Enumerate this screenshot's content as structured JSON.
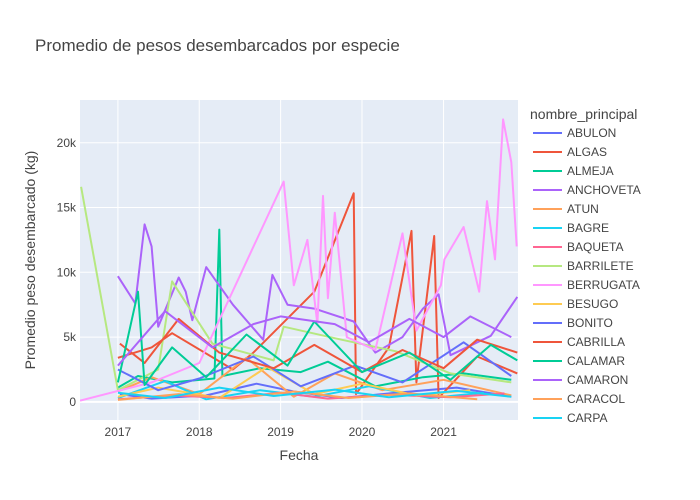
{
  "chart_data": {
    "type": "line",
    "title": "Promedio de pesos desembarcados por especie",
    "xlabel": "Fecha",
    "ylabel": "Promedio peso desembarcado (kg)",
    "x_range": [
      "2016-07-15",
      "2021-12-01"
    ],
    "y_range": [
      -1400,
      23300
    ],
    "x_ticks": [
      {
        "date": "2017-01-01",
        "label": "2017"
      },
      {
        "date": "2018-01-01",
        "label": "2018"
      },
      {
        "date": "2019-01-01",
        "label": "2019"
      },
      {
        "date": "2020-01-01",
        "label": "2020"
      },
      {
        "date": "2021-01-01",
        "label": "2021"
      }
    ],
    "y_ticks": [
      {
        "value": 0,
        "label": "0"
      },
      {
        "value": 5000,
        "label": "5k"
      },
      {
        "value": 10000,
        "label": "10k"
      },
      {
        "value": 15000,
        "label": "15k"
      },
      {
        "value": 20000,
        "label": "20k"
      }
    ],
    "grid": true,
    "legend": {
      "title": "nombre_principal",
      "placement": "right"
    },
    "series": [
      {
        "name": "ABULON",
        "color": "#636efa",
        "points": [
          [
            "2017-01-10",
            600
          ],
          [
            "2017-06-01",
            250
          ],
          [
            "2018-02-01",
            500
          ],
          [
            "2018-09-15",
            1400
          ],
          [
            "2019-03-01",
            800
          ],
          [
            "2019-10-01",
            300
          ],
          [
            "2020-06-01",
            700
          ],
          [
            "2021-03-01",
            1100
          ],
          [
            "2021-11-01",
            400
          ]
        ]
      },
      {
        "name": "ALGAS",
        "color": "#EF553B",
        "points": [
          [
            "2017-01-01",
            3400
          ],
          [
            "2017-06-01",
            4200
          ],
          [
            "2017-09-01",
            5300
          ],
          [
            "2018-06-01",
            2500
          ],
          [
            "2018-09-01",
            3800
          ],
          [
            "2019-06-01",
            8500
          ],
          [
            "2019-11-25",
            16100
          ],
          [
            "2019-12-05",
            600
          ],
          [
            "2020-05-01",
            4200
          ],
          [
            "2020-08-10",
            13200
          ],
          [
            "2020-09-01",
            1500
          ],
          [
            "2020-11-20",
            12800
          ],
          [
            "2020-12-10",
            300
          ],
          [
            "2021-06-01",
            3500
          ],
          [
            "2021-11-28",
            2200
          ]
        ]
      },
      {
        "name": "ALMEJA",
        "color": "#00cc96",
        "points": [
          [
            "2017-01-01",
            1100
          ],
          [
            "2017-04-01",
            2000
          ],
          [
            "2017-09-01",
            1500
          ],
          [
            "2018-03-10",
            1800
          ],
          [
            "2018-04-01",
            13300
          ],
          [
            "2018-04-15",
            2000
          ],
          [
            "2018-10-01",
            2600
          ],
          [
            "2019-04-01",
            2300
          ],
          [
            "2019-08-01",
            3100
          ],
          [
            "2020-03-01",
            1200
          ],
          [
            "2020-10-01",
            1900
          ],
          [
            "2021-04-01",
            2200
          ],
          [
            "2021-11-01",
            1700
          ]
        ]
      },
      {
        "name": "ANCHOVETA",
        "color": "#ab63fa",
        "points": [
          [
            "2017-01-01",
            9700
          ],
          [
            "2017-03-20",
            7600
          ],
          [
            "2017-05-01",
            13700
          ],
          [
            "2017-06-01",
            12000
          ],
          [
            "2017-07-01",
            5800
          ],
          [
            "2017-10-01",
            9600
          ],
          [
            "2017-11-01",
            8500
          ],
          [
            "2017-12-01",
            6300
          ],
          [
            "2018-02-01",
            10400
          ],
          [
            "2018-06-01",
            7500
          ],
          [
            "2018-10-15",
            4800
          ],
          [
            "2018-11-25",
            9800
          ],
          [
            "2019-02-01",
            7500
          ],
          [
            "2019-06-01",
            7200
          ],
          [
            "2019-11-25",
            6200
          ],
          [
            "2020-03-01",
            3800
          ],
          [
            "2020-07-01",
            5000
          ],
          [
            "2020-10-01",
            7200
          ],
          [
            "2020-12-10",
            8300
          ],
          [
            "2021-02-01",
            3600
          ],
          [
            "2021-08-01",
            5100
          ],
          [
            "2021-11-28",
            8100
          ]
        ]
      },
      {
        "name": "ATUN",
        "color": "#FFA15A",
        "points": [
          [
            "2017-01-01",
            800
          ],
          [
            "2017-06-01",
            1900
          ],
          [
            "2018-01-01",
            600
          ],
          [
            "2018-08-01",
            3400
          ],
          [
            "2019-03-01",
            400
          ],
          [
            "2019-09-01",
            2200
          ],
          [
            "2020-04-01",
            900
          ],
          [
            "2021-01-01",
            1700
          ],
          [
            "2021-11-01",
            500
          ]
        ]
      },
      {
        "name": "BAGRE",
        "color": "#19d3f3",
        "points": [
          [
            "2017-01-01",
            300
          ],
          [
            "2017-08-01",
            1600
          ],
          [
            "2018-02-01",
            200
          ],
          [
            "2018-10-01",
            900
          ],
          [
            "2019-06-01",
            400
          ],
          [
            "2020-02-01",
            1200
          ],
          [
            "2020-11-01",
            300
          ],
          [
            "2021-07-01",
            700
          ]
        ]
      },
      {
        "name": "BAQUETA",
        "color": "#FF6692",
        "points": [
          [
            "2017-01-01",
            200
          ],
          [
            "2017-09-01",
            500
          ],
          [
            "2018-05-01",
            300
          ],
          [
            "2019-01-01",
            700
          ],
          [
            "2019-08-01",
            250
          ],
          [
            "2020-05-01",
            550
          ],
          [
            "2021-02-01",
            350
          ],
          [
            "2021-10-01",
            650
          ]
        ]
      },
      {
        "name": "BARRILETE",
        "color": "#B6E880",
        "points": [
          [
            "2016-07-20",
            16600
          ],
          [
            "2017-01-01",
            900
          ],
          [
            "2017-07-01",
            2500
          ],
          [
            "2017-09-01",
            9300
          ],
          [
            "2018-03-01",
            4500
          ],
          [
            "2018-12-01",
            3200
          ],
          [
            "2019-01-15",
            5800
          ],
          [
            "2019-10-01",
            4800
          ],
          [
            "2020-06-01",
            3900
          ],
          [
            "2021-02-01",
            2200
          ],
          [
            "2021-11-01",
            1500
          ]
        ]
      },
      {
        "name": "BERRUGATA",
        "color": "#FF97FF",
        "points": [
          [
            "2016-07-15",
            100
          ],
          [
            "2017-06-01",
            1500
          ],
          [
            "2018-01-01",
            3000
          ],
          [
            "2019-01-15",
            17000
          ],
          [
            "2019-03-01",
            9000
          ],
          [
            "2019-05-01",
            12500
          ],
          [
            "2019-06-15",
            6000
          ],
          [
            "2019-07-10",
            15900
          ],
          [
            "2019-08-01",
            8000
          ],
          [
            "2019-09-01",
            14600
          ],
          [
            "2019-10-25",
            5000
          ],
          [
            "2020-03-01",
            4000
          ],
          [
            "2020-07-01",
            13000
          ],
          [
            "2020-09-01",
            5500
          ],
          [
            "2020-12-20",
            9000
          ],
          [
            "2021-01-05",
            11000
          ],
          [
            "2021-04-01",
            13500
          ],
          [
            "2021-06-10",
            8500
          ],
          [
            "2021-07-15",
            15500
          ],
          [
            "2021-08-20",
            11000
          ],
          [
            "2021-09-25",
            21800
          ],
          [
            "2021-11-01",
            18500
          ],
          [
            "2021-11-25",
            12000
          ]
        ]
      },
      {
        "name": "BESUGO",
        "color": "#FECB52",
        "points": [
          [
            "2017-01-01",
            400
          ],
          [
            "2017-07-01",
            1100
          ],
          [
            "2018-04-01",
            300
          ],
          [
            "2018-11-01",
            2700
          ],
          [
            "2019-06-01",
            600
          ],
          [
            "2020-01-01",
            1400
          ],
          [
            "2020-09-01",
            500
          ],
          [
            "2021-05-01",
            900
          ]
        ]
      },
      {
        "name": "BONITO",
        "color": "#636efa",
        "points": [
          [
            "2017-01-01",
            2500
          ],
          [
            "2017-07-01",
            900
          ],
          [
            "2018-01-01",
            1800
          ],
          [
            "2018-09-01",
            3500
          ],
          [
            "2019-04-01",
            1200
          ],
          [
            "2019-12-01",
            2800
          ],
          [
            "2020-07-01",
            1500
          ],
          [
            "2021-04-01",
            4600
          ],
          [
            "2021-11-01",
            2000
          ]
        ]
      },
      {
        "name": "CABRILLA",
        "color": "#EF553B",
        "points": [
          [
            "2017-01-10",
            4500
          ],
          [
            "2017-05-01",
            3000
          ],
          [
            "2017-10-01",
            6400
          ],
          [
            "2018-04-01",
            3800
          ],
          [
            "2018-12-01",
            2600
          ],
          [
            "2019-06-01",
            4400
          ],
          [
            "2020-01-01",
            2300
          ],
          [
            "2020-07-01",
            4000
          ],
          [
            "2021-01-01",
            2600
          ],
          [
            "2021-06-01",
            4800
          ],
          [
            "2021-11-28",
            3800
          ]
        ]
      },
      {
        "name": "CALAMAR",
        "color": "#00cc96",
        "points": [
          [
            "2017-01-01",
            1500
          ],
          [
            "2017-04-01",
            8500
          ],
          [
            "2017-05-01",
            1300
          ],
          [
            "2017-09-01",
            4200
          ],
          [
            "2018-02-01",
            1900
          ],
          [
            "2018-08-01",
            5200
          ],
          [
            "2019-02-01",
            2800
          ],
          [
            "2019-06-01",
            6200
          ],
          [
            "2020-01-01",
            2300
          ],
          [
            "2020-08-01",
            3800
          ],
          [
            "2021-02-01",
            1700
          ],
          [
            "2021-08-01",
            4400
          ],
          [
            "2021-11-28",
            3200
          ]
        ]
      },
      {
        "name": "CAMARON",
        "color": "#ab63fa",
        "points": [
          [
            "2017-01-01",
            2800
          ],
          [
            "2017-08-01",
            7000
          ],
          [
            "2018-03-01",
            4200
          ],
          [
            "2018-09-01",
            6000
          ],
          [
            "2019-01-01",
            6600
          ],
          [
            "2019-09-01",
            6000
          ],
          [
            "2020-02-01",
            4600
          ],
          [
            "2020-08-01",
            6400
          ],
          [
            "2021-01-01",
            5000
          ],
          [
            "2021-05-01",
            6600
          ],
          [
            "2021-11-01",
            5000
          ]
        ]
      },
      {
        "name": "CARACOL",
        "color": "#FFA15A",
        "points": [
          [
            "2017-01-01",
            150
          ],
          [
            "2017-10-01",
            600
          ],
          [
            "2018-06-01",
            250
          ],
          [
            "2019-03-01",
            800
          ],
          [
            "2019-11-01",
            300
          ],
          [
            "2020-08-01",
            650
          ],
          [
            "2021-06-01",
            200
          ]
        ]
      },
      {
        "name": "CARPA",
        "color": "#19d3f3",
        "points": [
          [
            "2017-01-01",
            700
          ],
          [
            "2017-08-01",
            300
          ],
          [
            "2018-04-01",
            1100
          ],
          [
            "2018-12-01",
            450
          ],
          [
            "2019-09-01",
            950
          ],
          [
            "2020-05-01",
            350
          ],
          [
            "2021-03-01",
            850
          ],
          [
            "2021-11-01",
            400
          ]
        ]
      }
    ]
  }
}
